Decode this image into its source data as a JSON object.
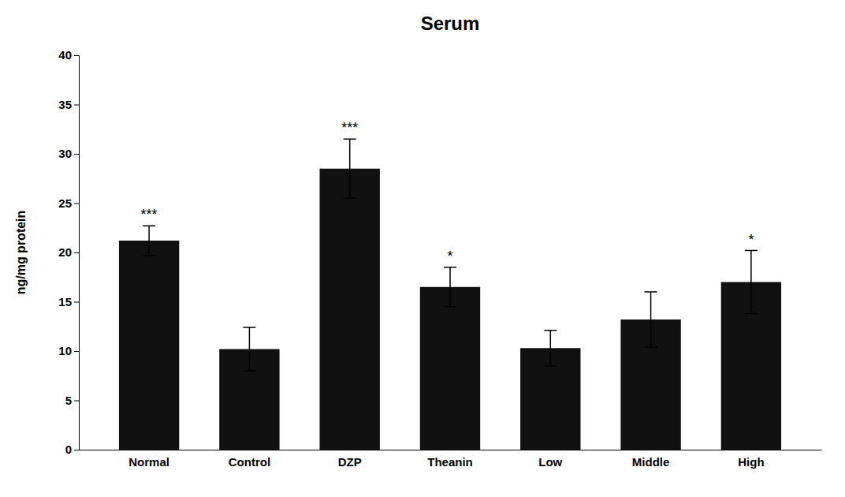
{
  "chart_data": {
    "type": "bar",
    "title": "Serum",
    "ylabel": "ng/mg protein",
    "categories": [
      "Normal",
      "Control",
      "DZP",
      "Theanin",
      "Low",
      "Middle",
      "High"
    ],
    "values": [
      21.2,
      10.2,
      28.5,
      16.5,
      10.3,
      13.2,
      17.0
    ],
    "errors": [
      1.5,
      2.2,
      3.0,
      2.0,
      1.8,
      2.8,
      3.2
    ],
    "significance": [
      "***",
      null,
      "***",
      "*",
      null,
      null,
      "*"
    ],
    "color": "#111111",
    "ylim": [
      0,
      40
    ],
    "yticks": [
      0,
      5,
      10,
      15,
      20,
      25,
      30,
      35,
      40
    ],
    "grid": false
  }
}
